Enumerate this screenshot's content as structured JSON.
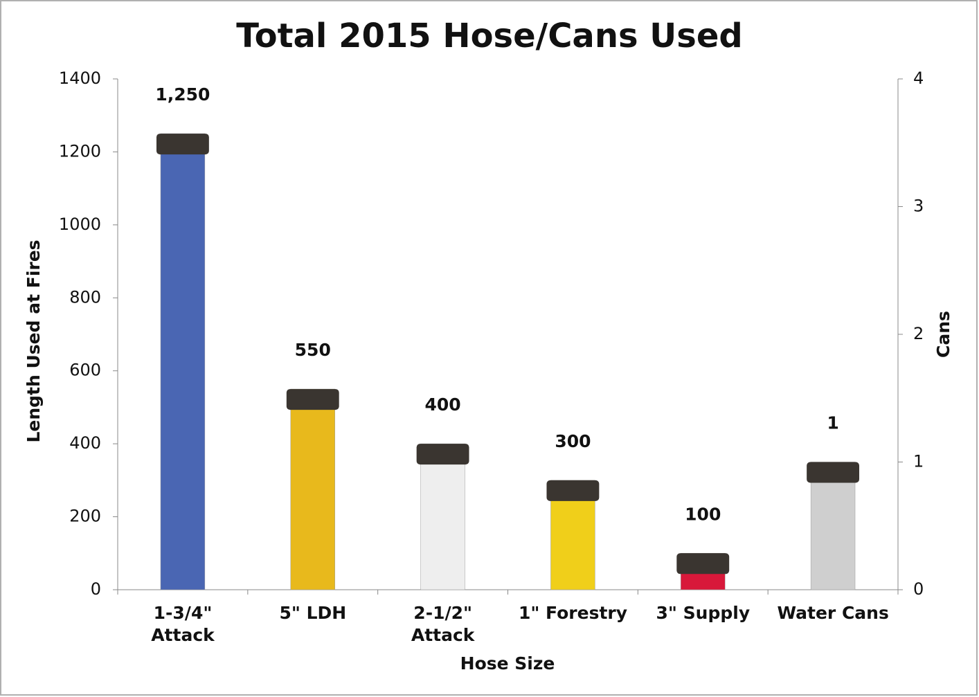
{
  "chart_data": {
    "type": "bar",
    "title": "Total 2015 Hose/Cans Used",
    "x_label": "Hose Size",
    "y_label": "Length Used at Fires",
    "y2_label": "Cans",
    "categories": [
      "1-3/4\"\nAttack",
      "5\" LDH",
      "2-1/2\"\nAttack",
      "1\" Forestry",
      "3\" Supply",
      "Water Cans"
    ],
    "series": [
      {
        "values": [
          1250,
          550,
          400,
          300,
          100,
          null
        ],
        "value_labels": [
          "1,250",
          "550",
          "400",
          "300",
          "100",
          null
        ],
        "colors": [
          "#4a66b3",
          "#e8b91c",
          "#eeeeee",
          "#f0cf1a",
          "#d8183a",
          null
        ]
      },
      {
        "axis": "y2",
        "values": [
          null,
          null,
          null,
          null,
          null,
          1
        ],
        "colors": [
          null,
          null,
          null,
          null,
          null,
          "#cfcfcf"
        ]
      }
    ],
    "ylim": [
      0,
      1400
    ],
    "yticks": [
      0,
      200,
      400,
      600,
      800,
      1000,
      1200,
      1400
    ],
    "y2lim": [
      0,
      4
    ],
    "y2ticks": [
      0,
      1,
      2,
      3,
      4
    ],
    "grid": false
  }
}
